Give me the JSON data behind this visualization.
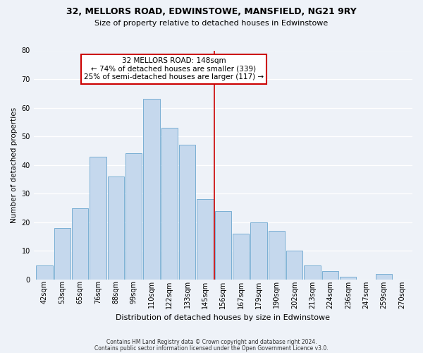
{
  "title": "32, MELLORS ROAD, EDWINSTOWE, MANSFIELD, NG21 9RY",
  "subtitle": "Size of property relative to detached houses in Edwinstowe",
  "xlabel": "Distribution of detached houses by size in Edwinstowe",
  "ylabel": "Number of detached properties",
  "bar_labels": [
    "42sqm",
    "53sqm",
    "65sqm",
    "76sqm",
    "88sqm",
    "99sqm",
    "110sqm",
    "122sqm",
    "133sqm",
    "145sqm",
    "156sqm",
    "167sqm",
    "179sqm",
    "190sqm",
    "202sqm",
    "213sqm",
    "224sqm",
    "236sqm",
    "247sqm",
    "259sqm",
    "270sqm"
  ],
  "bar_values": [
    5,
    18,
    25,
    43,
    36,
    44,
    63,
    53,
    47,
    28,
    24,
    16,
    20,
    17,
    10,
    5,
    3,
    1,
    0,
    2,
    0
  ],
  "bar_color": "#c5d8ed",
  "bar_edge_color": "#7aafd4",
  "vline_x_index": 9.5,
  "vline_color": "#cc0000",
  "annotation_title": "32 MELLORS ROAD: 148sqm",
  "annotation_line1": "← 74% of detached houses are smaller (339)",
  "annotation_line2": "25% of semi-detached houses are larger (117) →",
  "annotation_box_color": "#ffffff",
  "annotation_box_edge": "#cc0000",
  "ylim": [
    0,
    80
  ],
  "yticks": [
    0,
    10,
    20,
    30,
    40,
    50,
    60,
    70,
    80
  ],
  "footnote1": "Contains HM Land Registry data © Crown copyright and database right 2024.",
  "footnote2": "Contains public sector information licensed under the Open Government Licence v3.0.",
  "bg_color": "#eef2f8",
  "grid_color": "#ffffff",
  "title_fontsize": 9,
  "subtitle_fontsize": 8,
  "ylabel_fontsize": 7.5,
  "xlabel_fontsize": 8,
  "tick_fontsize": 7,
  "annotation_fontsize": 7.5,
  "footnote_fontsize": 5.5
}
